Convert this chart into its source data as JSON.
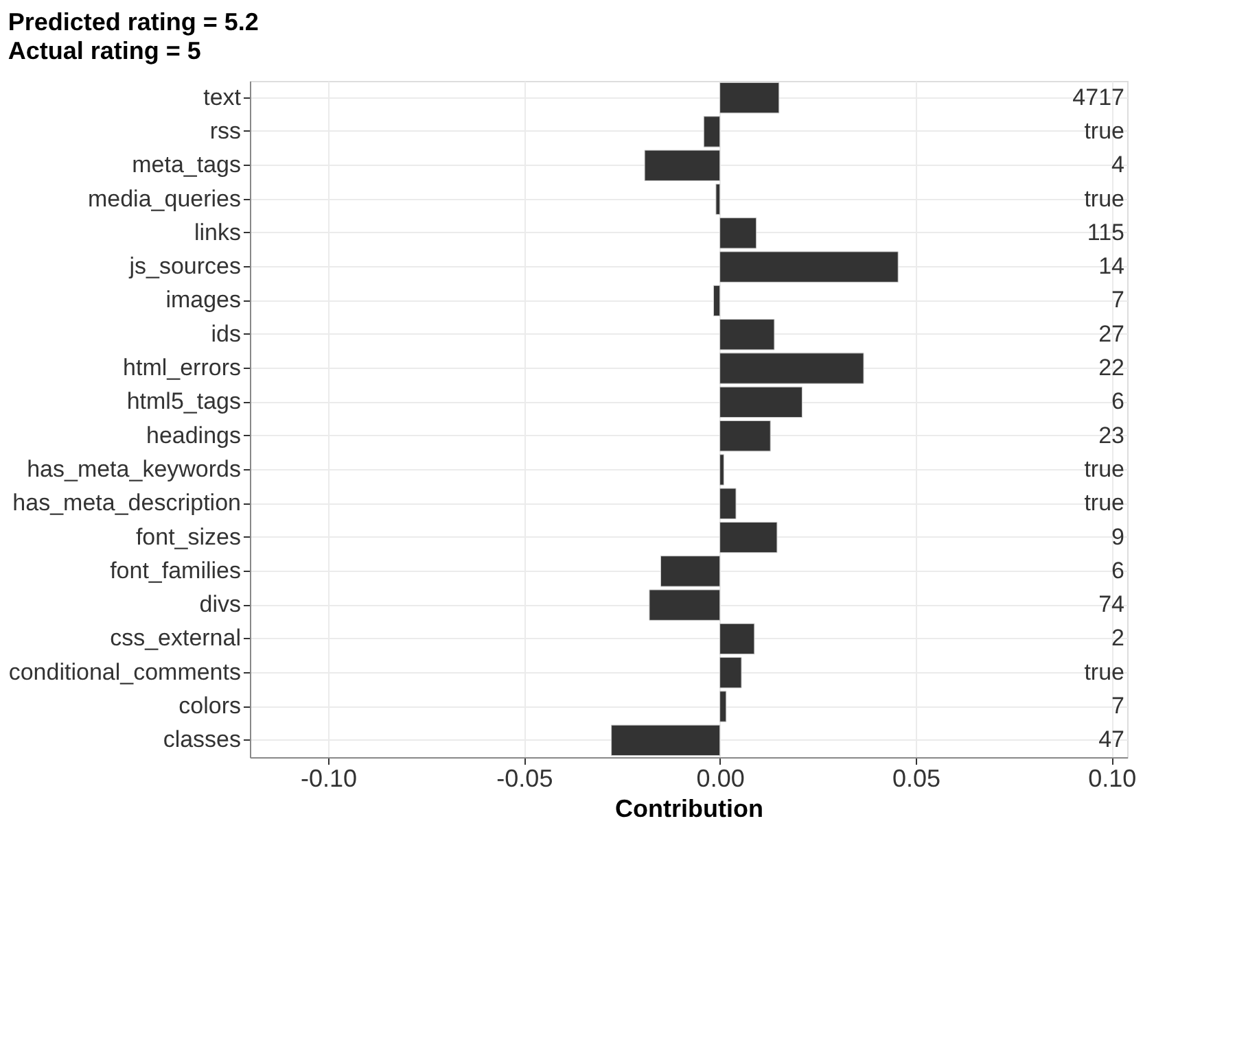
{
  "chart_data": {
    "type": "bar",
    "orientation": "horizontal",
    "title": "Predicted rating = 5.2",
    "subtitle": "Actual rating = 5",
    "xlabel": "Contribution",
    "categories": [
      "text",
      "rss",
      "meta_tags",
      "media_queries",
      "links",
      "js_sources",
      "images",
      "ids",
      "html_errors",
      "html5_tags",
      "headings",
      "has_meta_keywords",
      "has_meta_description",
      "font_sizes",
      "font_families",
      "divs",
      "css_external",
      "conditional_comments",
      "colors",
      "classes"
    ],
    "values": [
      0.0151,
      -0.0041,
      -0.0192,
      -0.001,
      0.0093,
      0.0455,
      -0.0016,
      0.0139,
      0.0367,
      0.021,
      0.0129,
      0.001,
      0.0041,
      0.0146,
      -0.0151,
      -0.018,
      0.0088,
      0.0055,
      0.0016,
      -0.0277
    ],
    "annotations": [
      "4717",
      "true",
      "4",
      "true",
      "115",
      "14",
      "7",
      "27",
      "22",
      "6",
      "23",
      "true",
      "true",
      "9",
      "6",
      "74",
      "2",
      "true",
      "7",
      "47"
    ],
    "color": "#333333",
    "xlim": [
      -0.12,
      0.104
    ],
    "xticks": [
      {
        "value": -0.1,
        "label": "-0.10"
      },
      {
        "value": -0.05,
        "label": "-0.05"
      },
      {
        "value": 0,
        "label": "0.00"
      },
      {
        "value": 0.05,
        "label": "0.05"
      },
      {
        "value": 0.1,
        "label": "0.10"
      }
    ],
    "grid": true
  }
}
